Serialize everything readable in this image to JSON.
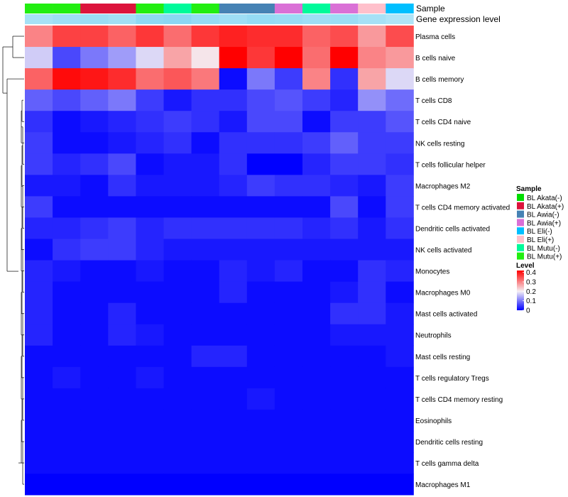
{
  "chart_data": {
    "type": "heatmap",
    "annotation_labels": [
      "Sample",
      "Gene expression level"
    ],
    "samples": [
      "BL Mutu(+)",
      "BL Mutu(+)",
      "BL Akata(+)",
      "BL Akata(+)",
      "BL Mutu(+)",
      "BL Mutu(-)",
      "BL Mutu(+)",
      "BL Awia(-)",
      "BL Awia(-)",
      "BL Awia(+)",
      "BL Mutu(-)",
      "BL Awia(+)",
      "BL Eli(+)",
      "BL Eli(-)"
    ],
    "expression_levels": [
      0.55,
      0.6,
      0.62,
      0.58,
      0.7,
      0.72,
      0.66,
      0.6,
      0.66,
      0.64,
      0.6,
      0.62,
      0.55,
      0.5
    ],
    "rows": [
      "Plasma cells",
      "B cells naive",
      "B cells memory",
      "T cells CD8",
      "T cells CD4 naive",
      "NK cells resting",
      "T cells follicular helper",
      "Macrophages M2",
      "T cells CD4 memory activated",
      "Dendritic cells activated",
      "NK cells activated",
      "Monocytes",
      "Macrophages M0",
      "Mast cells activated",
      "Neutrophils",
      "Mast cells resting",
      "T cells regulatory  Tregs",
      "T cells CD4 memory resting",
      "Eosinophils",
      "Dendritic cells resting",
      "T cells gamma delta",
      "Macrophages M1"
    ],
    "values": [
      [
        0.3,
        0.36,
        0.36,
        0.33,
        0.37,
        0.32,
        0.37,
        0.39,
        0.38,
        0.38,
        0.33,
        0.35,
        0.28,
        0.35
      ],
      [
        0.17,
        0.06,
        0.1,
        0.13,
        0.18,
        0.27,
        0.21,
        0.42,
        0.37,
        0.42,
        0.32,
        0.42,
        0.3,
        0.28
      ],
      [
        0.33,
        0.41,
        0.4,
        0.38,
        0.32,
        0.34,
        0.31,
        0.01,
        0.1,
        0.05,
        0.3,
        0.04,
        0.27,
        0.18
      ],
      [
        0.08,
        0.06,
        0.08,
        0.1,
        0.05,
        0.02,
        0.04,
        0.04,
        0.06,
        0.07,
        0.05,
        0.03,
        0.12,
        0.09
      ],
      [
        0.04,
        0.01,
        0.02,
        0.03,
        0.04,
        0.05,
        0.04,
        0.02,
        0.06,
        0.06,
        0.01,
        0.05,
        0.05,
        0.07
      ],
      [
        0.05,
        0.01,
        0.01,
        0.02,
        0.03,
        0.04,
        0.01,
        0.04,
        0.04,
        0.04,
        0.05,
        0.08,
        0.05,
        0.05
      ],
      [
        0.05,
        0.03,
        0.04,
        0.06,
        0.01,
        0.02,
        0.02,
        0.04,
        0.0,
        0.0,
        0.03,
        0.05,
        0.05,
        0.04
      ],
      [
        0.02,
        0.02,
        0.01,
        0.04,
        0.02,
        0.02,
        0.02,
        0.03,
        0.05,
        0.04,
        0.04,
        0.03,
        0.02,
        0.05
      ],
      [
        0.05,
        0.01,
        0.01,
        0.01,
        0.01,
        0.01,
        0.01,
        0.01,
        0.01,
        0.01,
        0.01,
        0.06,
        0.01,
        0.05
      ],
      [
        0.03,
        0.03,
        0.04,
        0.05,
        0.03,
        0.04,
        0.04,
        0.04,
        0.04,
        0.04,
        0.03,
        0.04,
        0.02,
        0.04
      ],
      [
        0.01,
        0.04,
        0.05,
        0.05,
        0.03,
        0.02,
        0.02,
        0.02,
        0.02,
        0.02,
        0.02,
        0.02,
        0.02,
        0.02
      ],
      [
        0.03,
        0.02,
        0.01,
        0.01,
        0.02,
        0.01,
        0.01,
        0.03,
        0.02,
        0.03,
        0.01,
        0.01,
        0.04,
        0.03
      ],
      [
        0.03,
        0.01,
        0.01,
        0.01,
        0.01,
        0.01,
        0.01,
        0.03,
        0.01,
        0.01,
        0.01,
        0.02,
        0.04,
        0.01
      ],
      [
        0.03,
        0.01,
        0.01,
        0.03,
        0.01,
        0.01,
        0.01,
        0.01,
        0.01,
        0.01,
        0.01,
        0.04,
        0.04,
        0.02
      ],
      [
        0.03,
        0.01,
        0.01,
        0.03,
        0.02,
        0.01,
        0.01,
        0.01,
        0.01,
        0.01,
        0.01,
        0.02,
        0.02,
        0.02
      ],
      [
        0.01,
        0.01,
        0.01,
        0.01,
        0.01,
        0.01,
        0.03,
        0.03,
        0.01,
        0.01,
        0.01,
        0.01,
        0.01,
        0.02
      ],
      [
        0.01,
        0.02,
        0.01,
        0.01,
        0.02,
        0.01,
        0.01,
        0.01,
        0.01,
        0.01,
        0.01,
        0.01,
        0.01,
        0.01
      ],
      [
        0.01,
        0.01,
        0.01,
        0.01,
        0.01,
        0.01,
        0.01,
        0.01,
        0.02,
        0.01,
        0.01,
        0.01,
        0.01,
        0.01
      ],
      [
        0.01,
        0.01,
        0.01,
        0.01,
        0.01,
        0.01,
        0.01,
        0.01,
        0.01,
        0.01,
        0.01,
        0.01,
        0.01,
        0.01
      ],
      [
        0.01,
        0.01,
        0.01,
        0.01,
        0.01,
        0.01,
        0.01,
        0.01,
        0.01,
        0.01,
        0.01,
        0.01,
        0.01,
        0.01
      ],
      [
        0.01,
        0.01,
        0.01,
        0.01,
        0.01,
        0.01,
        0.01,
        0.01,
        0.01,
        0.01,
        0.01,
        0.01,
        0.01,
        0.01
      ],
      [
        0.0,
        0.0,
        0.0,
        0.0,
        0.0,
        0.0,
        0.0,
        0.0,
        0.0,
        0.0,
        0.0,
        0.0,
        0.0,
        0.0
      ]
    ],
    "value_range": [
      0,
      0.42
    ],
    "color_scale": {
      "low": "#0000ff",
      "mid": "#f5f0f5",
      "high": "#ff0000",
      "mid_value": 0.2
    },
    "expression_scale": {
      "low": "#ffffff",
      "high": "#5ec8ee"
    },
    "legends": {
      "sample": {
        "title": "Sample",
        "entries": [
          {
            "label": "BL Akata(-)",
            "color": "#00dd00"
          },
          {
            "label": "BL Akata(+)",
            "color": "#dc143c"
          },
          {
            "label": "BL Awia(-)",
            "color": "#4682b4"
          },
          {
            "label": "BL Awia(+)",
            "color": "#da70d6"
          },
          {
            "label": "BL Eli(-)",
            "color": "#00bfff"
          },
          {
            "label": "BL Eli(+)",
            "color": "#ffc0cb"
          },
          {
            "label": "BL Mutu(-)",
            "color": "#00fa9a"
          },
          {
            "label": "BL Mutu(+)",
            "color": "#22ee11"
          }
        ]
      },
      "level": {
        "title": "Level",
        "ticks": [
          "0.4",
          "0.3",
          "0.2",
          "0.1",
          "0"
        ],
        "tick_values": [
          0.4,
          0.3,
          0.2,
          0.1,
          0
        ]
      }
    }
  }
}
